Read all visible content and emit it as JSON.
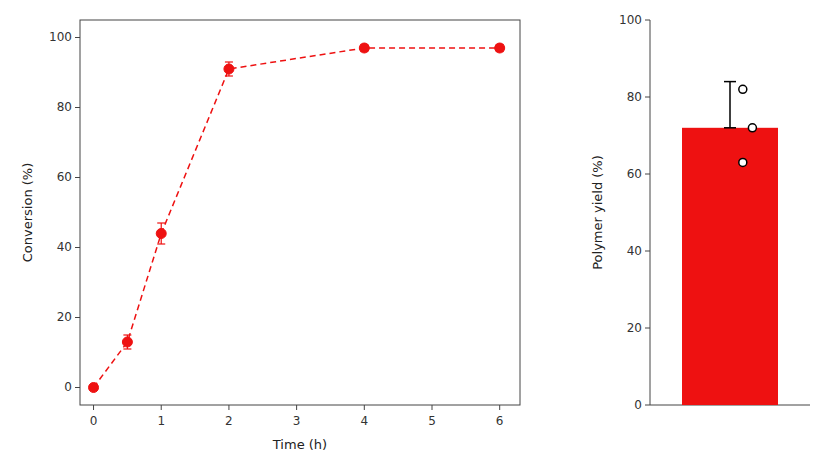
{
  "chart_data": [
    {
      "type": "line",
      "x": [
        0,
        0.5,
        1,
        2,
        4,
        6
      ],
      "values": [
        0,
        13,
        44,
        91,
        97,
        97
      ],
      "error": [
        0.3,
        2,
        3,
        2,
        1,
        1
      ],
      "color": "#EE1111",
      "marker": "o",
      "line_style": "dashed",
      "xlabel": "Time (h)",
      "ylabel": "Conversion (%)",
      "xlim": [
        -0.2,
        6.3
      ],
      "ylim": [
        -5,
        105
      ],
      "xticks": [
        0,
        1,
        2,
        3,
        4,
        5,
        6
      ],
      "yticks": [
        0,
        20,
        40,
        60,
        80,
        100
      ]
    },
    {
      "type": "bar",
      "categories": [
        null
      ],
      "values": [
        72
      ],
      "error_low": [
        0
      ],
      "error_high": [
        12
      ],
      "points": [
        63,
        72,
        82
      ],
      "color": "#EE1111",
      "ylabel": "Polymer yield (%)",
      "ylim": [
        0,
        100
      ],
      "yticks": [
        0,
        20,
        40,
        60,
        80,
        100
      ],
      "tick_labels": "y"
    }
  ]
}
